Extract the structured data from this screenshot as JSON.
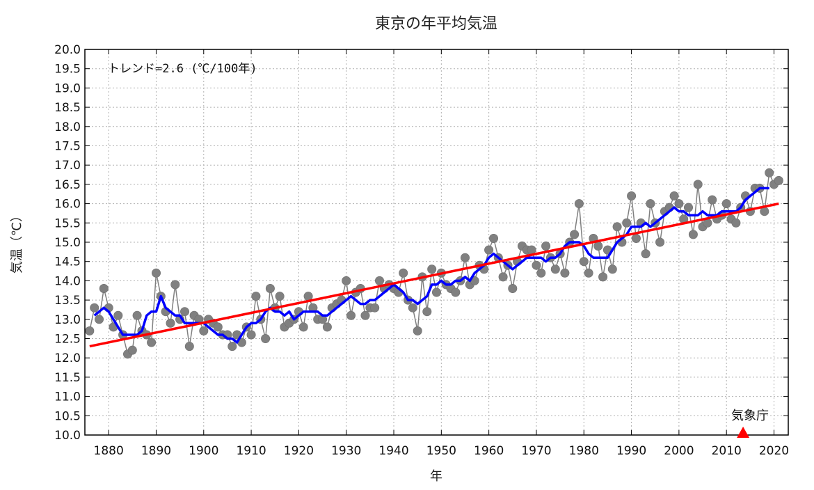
{
  "chart_data": {
    "type": "line",
    "title": "東京の年平均気温",
    "xlabel": "年",
    "ylabel": "気温（℃）",
    "xlim": [
      1875,
      2023
    ],
    "ylim": [
      10.0,
      20.0
    ],
    "x_ticks": [
      1880,
      1890,
      1900,
      1910,
      1920,
      1930,
      1940,
      1950,
      1960,
      1970,
      1980,
      1990,
      2000,
      2010,
      2020
    ],
    "y_ticks": [
      "10.0",
      "10.5",
      "11.0",
      "11.5",
      "12.0",
      "12.5",
      "13.0",
      "13.5",
      "14.0",
      "14.5",
      "15.0",
      "15.5",
      "16.0",
      "16.5",
      "17.0",
      "17.5",
      "18.0",
      "18.5",
      "19.0",
      "19.5",
      "20.0"
    ],
    "grid": true,
    "annotation": "トレンド=2.6 (℃/100年)",
    "credit": "気象庁",
    "marker_year": 2013.5,
    "colors": {
      "annual": "#808080",
      "moving_avg": "#0000ff",
      "trend": "#ff0000",
      "marker": "#ff0000"
    },
    "series": [
      {
        "x": [
          1876,
          1877,
          1878,
          1879,
          1880,
          1881,
          1882,
          1883,
          1884,
          1885,
          1886,
          1887,
          1888,
          1889,
          1890,
          1891,
          1892,
          1893,
          1894,
          1895,
          1896,
          1897,
          1898,
          1899,
          1900,
          1901,
          1902,
          1903,
          1904,
          1905,
          1906,
          1907,
          1908,
          1909,
          1910,
          1911,
          1912,
          1913,
          1914,
          1915,
          1916,
          1917,
          1918,
          1919,
          1920,
          1921,
          1922,
          1923,
          1924,
          1925,
          1926,
          1927,
          1928,
          1929,
          1930,
          1931,
          1932,
          1933,
          1934,
          1935,
          1936,
          1937,
          1938,
          1939,
          1940,
          1941,
          1942,
          1943,
          1944,
          1945,
          1946,
          1947,
          1948,
          1949,
          1950,
          1951,
          1952,
          1953,
          1954,
          1955,
          1956,
          1957,
          1958,
          1959,
          1960,
          1961,
          1962,
          1963,
          1964,
          1965,
          1966,
          1967,
          1968,
          1969,
          1970,
          1971,
          1972,
          1973,
          1974,
          1975,
          1976,
          1977,
          1978,
          1979,
          1980,
          1981,
          1982,
          1983,
          1984,
          1985,
          1986,
          1987,
          1988,
          1989,
          1990,
          1991,
          1992,
          1993,
          1994,
          1995,
          1996,
          1997,
          1998,
          1999,
          2000,
          2001,
          2002,
          2003,
          2004,
          2005,
          2006,
          2007,
          2008,
          2009,
          2010,
          2011,
          2012,
          2013,
          2014,
          2015,
          2016,
          2017,
          2018,
          2019,
          2020,
          2021
        ],
        "values": [
          12.7,
          13.3,
          13.0,
          13.8,
          13.3,
          12.8,
          13.1,
          12.6,
          12.1,
          12.2,
          13.1,
          12.7,
          12.6,
          12.4,
          14.2,
          13.6,
          13.2,
          12.9,
          13.9,
          13.0,
          13.2,
          12.3,
          13.1,
          13.0,
          12.7,
          13.0,
          12.9,
          12.8,
          12.6,
          12.6,
          12.3,
          12.6,
          12.4,
          12.8,
          12.6,
          13.6,
          13.0,
          12.5,
          13.8,
          13.3,
          13.6,
          12.8,
          12.9,
          13.0,
          13.2,
          12.8,
          13.6,
          13.3,
          13.0,
          13.0,
          12.8,
          13.3,
          13.4,
          13.5,
          14.0,
          13.1,
          13.7,
          13.8,
          13.1,
          13.3,
          13.3,
          14.0,
          13.8,
          13.9,
          13.8,
          13.7,
          14.2,
          13.5,
          13.3,
          12.7,
          14.1,
          13.2,
          14.3,
          13.7,
          14.2,
          13.9,
          13.8,
          13.7,
          14.0,
          14.6,
          13.9,
          14.0,
          14.4,
          14.3,
          14.8,
          15.1,
          14.6,
          14.1,
          14.4,
          13.8,
          14.5,
          14.9,
          14.8,
          14.8,
          14.4,
          14.2,
          14.9,
          14.6,
          14.3,
          14.7,
          14.2,
          15.0,
          15.2,
          16.0,
          14.5,
          14.2,
          15.1,
          14.9,
          14.1,
          14.8,
          14.3,
          15.4,
          15.0,
          15.5,
          16.2,
          15.1,
          15.5,
          14.7,
          16.0,
          15.5,
          15.0,
          15.8,
          15.9,
          16.2,
          16.0,
          15.6,
          15.9,
          15.2,
          16.5,
          15.4,
          15.5,
          16.1,
          15.6,
          15.7,
          16.0,
          15.6,
          15.5,
          15.9,
          16.2,
          15.8,
          16.4,
          16.4,
          15.8,
          16.8,
          16.5,
          16.6
        ]
      },
      {
        "x": [
          1877,
          1878,
          1879,
          1880,
          1881,
          1882,
          1883,
          1884,
          1885,
          1886,
          1887,
          1888,
          1889,
          1890,
          1891,
          1892,
          1893,
          1894,
          1895,
          1896,
          1897,
          1898,
          1899,
          1900,
          1901,
          1902,
          1903,
          1904,
          1905,
          1906,
          1907,
          1908,
          1909,
          1910,
          1911,
          1912,
          1913,
          1914,
          1915,
          1916,
          1917,
          1918,
          1919,
          1920,
          1921,
          1922,
          1923,
          1924,
          1925,
          1926,
          1927,
          1928,
          1929,
          1930,
          1931,
          1932,
          1933,
          1934,
          1935,
          1936,
          1937,
          1938,
          1939,
          1940,
          1941,
          1942,
          1943,
          1944,
          1945,
          1946,
          1947,
          1948,
          1949,
          1950,
          1951,
          1952,
          1953,
          1954,
          1955,
          1956,
          1957,
          1958,
          1959,
          1960,
          1961,
          1962,
          1963,
          1964,
          1965,
          1966,
          1967,
          1968,
          1969,
          1970,
          1971,
          1972,
          1973,
          1974,
          1975,
          1976,
          1977,
          1978,
          1979,
          1980,
          1981,
          1982,
          1983,
          1984,
          1985,
          1986,
          1987,
          1988,
          1989,
          1990,
          1991,
          1992,
          1993,
          1994,
          1995,
          1996,
          1997,
          1998,
          1999,
          2000,
          2001,
          2002,
          2003,
          2004,
          2005,
          2006,
          2007,
          2008,
          2009,
          2010,
          2011,
          2012,
          2013,
          2014,
          2015,
          2016,
          2017,
          2018,
          2019
        ],
        "values": [
          13.1,
          13.2,
          13.3,
          13.2,
          13.0,
          12.8,
          12.6,
          12.6,
          12.6,
          12.6,
          12.7,
          13.1,
          13.2,
          13.2,
          13.6,
          13.3,
          13.2,
          13.1,
          13.1,
          12.9,
          12.9,
          12.9,
          12.9,
          12.9,
          12.8,
          12.7,
          12.6,
          12.6,
          12.5,
          12.5,
          12.4,
          12.6,
          12.8,
          12.9,
          12.9,
          13.0,
          13.2,
          13.3,
          13.2,
          13.2,
          13.1,
          13.2,
          13.0,
          13.1,
          13.2,
          13.2,
          13.2,
          13.2,
          13.1,
          13.1,
          13.2,
          13.3,
          13.4,
          13.5,
          13.6,
          13.5,
          13.4,
          13.4,
          13.5,
          13.5,
          13.6,
          13.7,
          13.8,
          13.9,
          13.8,
          13.7,
          13.5,
          13.5,
          13.4,
          13.5,
          13.6,
          13.9,
          13.9,
          14.0,
          13.9,
          13.9,
          14.0,
          14.0,
          14.1,
          14.0,
          14.2,
          14.3,
          14.4,
          14.6,
          14.7,
          14.6,
          14.5,
          14.4,
          14.3,
          14.4,
          14.5,
          14.6,
          14.6,
          14.6,
          14.6,
          14.5,
          14.6,
          14.6,
          14.7,
          14.9,
          15.0,
          15.0,
          15.0,
          14.9,
          14.7,
          14.6,
          14.6,
          14.6,
          14.6,
          14.8,
          15.0,
          15.1,
          15.2,
          15.4,
          15.4,
          15.4,
          15.5,
          15.4,
          15.5,
          15.6,
          15.7,
          15.8,
          15.9,
          15.8,
          15.8,
          15.7,
          15.7,
          15.7,
          15.8,
          15.7,
          15.7,
          15.7,
          15.8,
          15.8,
          15.8,
          15.8,
          15.9,
          16.1,
          16.2,
          16.3,
          16.4,
          16.4,
          16.4
        ]
      },
      {
        "x": [
          1876,
          2021
        ],
        "values": [
          12.3,
          16.0
        ]
      }
    ]
  }
}
